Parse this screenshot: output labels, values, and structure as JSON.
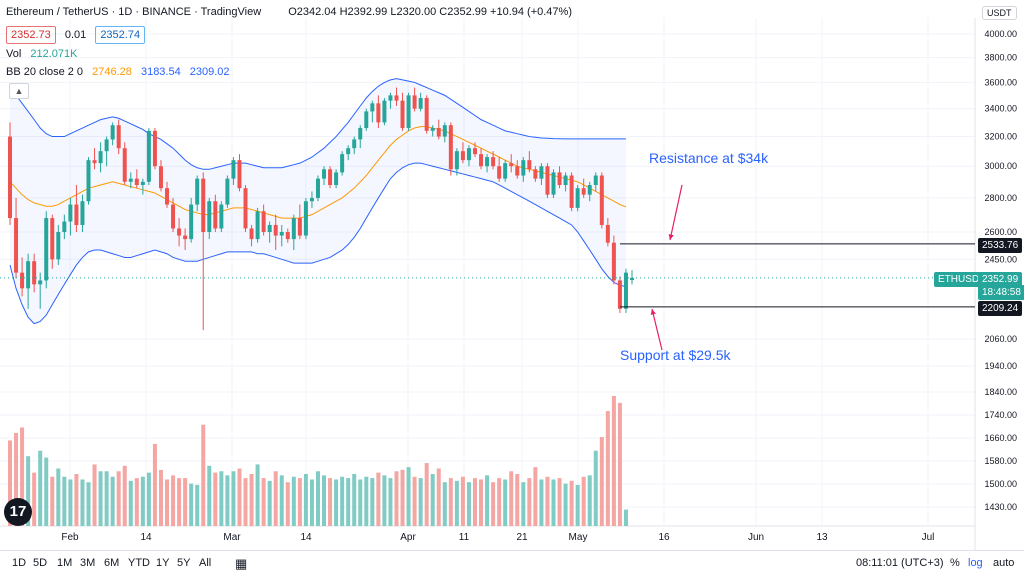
{
  "header": {
    "title": "Ethereum / TetherUS · 1D · BINANCE · TradingView",
    "ohlc": "O2342.04 H2392.99 L2320.00 C2352.99 +10.94 (+0.47%)",
    "bid": "2352.73",
    "spread": "0.01",
    "ask": "2352.74",
    "vol_label": "Vol",
    "vol_value": "212.071K",
    "bb_label": "BB 20 close 2 0",
    "bb_basis": "2746.28",
    "bb_upper": "3183.54",
    "bb_lower": "2309.02",
    "currency": "USDT"
  },
  "timeframes": [
    "1D",
    "5D",
    "1M",
    "3M",
    "6M",
    "YTD",
    "1Y",
    "5Y",
    "All"
  ],
  "bottom_right": {
    "clock": "08:11:01 (UTC+3)",
    "pct": "%",
    "log": "log",
    "auto": "auto"
  },
  "price_tag": {
    "symbol": "ETHUSDT",
    "price": "2352.99",
    "countdown": "18:48:58"
  },
  "levels": {
    "resistance": "2533.76",
    "support": "2209.24"
  },
  "annotations": {
    "resistance": "Resistance at $34k",
    "support": "Support at $29.5k"
  },
  "colors": {
    "up": "#26a69a",
    "down": "#ef5350",
    "band": "#2962ff",
    "basis": "#ff9800",
    "annotation": "#2962ff",
    "arrow": "#e91e63"
  },
  "chart_data": {
    "type": "candlestick",
    "yaxis": {
      "scale": "log",
      "ticks": [
        1430,
        1500,
        1580,
        1660,
        1740,
        1840,
        1940,
        2060,
        2450,
        2600,
        2800,
        3000,
        3200,
        3400,
        3600,
        3800,
        4000
      ]
    },
    "xaxis": {
      "labels": [
        "Feb",
        "14",
        "Mar",
        "14",
        "Apr",
        "11",
        "21",
        "May",
        "16",
        "Jun",
        "13",
        "Jul"
      ]
    },
    "candles": [
      [
        3200,
        3300,
        2640,
        2680
      ],
      [
        2680,
        2800,
        2350,
        2380
      ],
      [
        2380,
        2460,
        2260,
        2300
      ],
      [
        2300,
        2480,
        2200,
        2440
      ],
      [
        2440,
        2480,
        2280,
        2320
      ],
      [
        2320,
        2380,
        2200,
        2340
      ],
      [
        2340,
        2720,
        2300,
        2680
      ],
      [
        2680,
        2700,
        2400,
        2450
      ],
      [
        2450,
        2640,
        2420,
        2600
      ],
      [
        2600,
        2700,
        2560,
        2660
      ],
      [
        2660,
        2800,
        2580,
        2760
      ],
      [
        2760,
        2880,
        2600,
        2640
      ],
      [
        2640,
        2820,
        2600,
        2780
      ],
      [
        2780,
        3060,
        2760,
        3040
      ],
      [
        3040,
        3120,
        2980,
        3020
      ],
      [
        3020,
        3160,
        2960,
        3100
      ],
      [
        3100,
        3200,
        3000,
        3180
      ],
      [
        3180,
        3300,
        3140,
        3280
      ],
      [
        3280,
        3320,
        3080,
        3120
      ],
      [
        3120,
        3160,
        2880,
        2900
      ],
      [
        2900,
        2960,
        2860,
        2920
      ],
      [
        2920,
        2980,
        2860,
        2880
      ],
      [
        2880,
        2920,
        2820,
        2900
      ],
      [
        2900,
        3260,
        2880,
        3240
      ],
      [
        3240,
        3260,
        2980,
        3000
      ],
      [
        3000,
        3040,
        2840,
        2860
      ],
      [
        2860,
        2900,
        2740,
        2760
      ],
      [
        2760,
        2800,
        2600,
        2620
      ],
      [
        2620,
        2680,
        2520,
        2580
      ],
      [
        2580,
        2620,
        2500,
        2560
      ],
      [
        2560,
        2800,
        2540,
        2760
      ],
      [
        2760,
        2940,
        2720,
        2920
      ],
      [
        2920,
        2960,
        2100,
        2600
      ],
      [
        2600,
        2800,
        2560,
        2780
      ],
      [
        2780,
        2820,
        2600,
        2620
      ],
      [
        2620,
        2780,
        2600,
        2760
      ],
      [
        2760,
        2940,
        2740,
        2920
      ],
      [
        2920,
        3060,
        2880,
        3040
      ],
      [
        3040,
        3080,
        2840,
        2860
      ],
      [
        2860,
        2880,
        2600,
        2620
      ],
      [
        2620,
        2640,
        2520,
        2560
      ],
      [
        2560,
        2740,
        2540,
        2720
      ],
      [
        2720,
        2760,
        2580,
        2600
      ],
      [
        2600,
        2660,
        2540,
        2640
      ],
      [
        2640,
        2700,
        2500,
        2580
      ],
      [
        2580,
        2640,
        2520,
        2600
      ],
      [
        2600,
        2620,
        2540,
        2560
      ],
      [
        2560,
        2700,
        2500,
        2680
      ],
      [
        2680,
        2760,
        2560,
        2580
      ],
      [
        2580,
        2800,
        2560,
        2780
      ],
      [
        2780,
        2840,
        2740,
        2800
      ],
      [
        2800,
        2940,
        2780,
        2920
      ],
      [
        2920,
        3000,
        2880,
        2980
      ],
      [
        2980,
        3000,
        2860,
        2880
      ],
      [
        2880,
        2980,
        2860,
        2960
      ],
      [
        2960,
        3100,
        2940,
        3080
      ],
      [
        3080,
        3140,
        3040,
        3120
      ],
      [
        3120,
        3200,
        3080,
        3180
      ],
      [
        3180,
        3280,
        3120,
        3260
      ],
      [
        3260,
        3400,
        3240,
        3380
      ],
      [
        3380,
        3460,
        3300,
        3440
      ],
      [
        3440,
        3500,
        3260,
        3300
      ],
      [
        3300,
        3480,
        3280,
        3460
      ],
      [
        3460,
        3520,
        3400,
        3500
      ],
      [
        3500,
        3560,
        3420,
        3460
      ],
      [
        3460,
        3520,
        3240,
        3260
      ],
      [
        3260,
        3520,
        3240,
        3500
      ],
      [
        3500,
        3560,
        3380,
        3400
      ],
      [
        3400,
        3520,
        3380,
        3480
      ],
      [
        3480,
        3500,
        3220,
        3240
      ],
      [
        3240,
        3280,
        3200,
        3260
      ],
      [
        3260,
        3320,
        3180,
        3200
      ],
      [
        3200,
        3300,
        3160,
        3280
      ],
      [
        3280,
        3300,
        2940,
        2980
      ],
      [
        2980,
        3120,
        2940,
        3100
      ],
      [
        3100,
        3160,
        3020,
        3040
      ],
      [
        3040,
        3140,
        3000,
        3120
      ],
      [
        3120,
        3160,
        3060,
        3080
      ],
      [
        3080,
        3120,
        2980,
        3000
      ],
      [
        3000,
        3080,
        2960,
        3060
      ],
      [
        3060,
        3100,
        2980,
        3000
      ],
      [
        3000,
        3060,
        2900,
        2920
      ],
      [
        2920,
        3040,
        2900,
        3020
      ],
      [
        3020,
        3080,
        2960,
        3000
      ],
      [
        3000,
        3040,
        2920,
        2940
      ],
      [
        2940,
        3060,
        2900,
        3040
      ],
      [
        3040,
        3100,
        2960,
        2980
      ],
      [
        2980,
        3000,
        2900,
        2920
      ],
      [
        2920,
        3020,
        2880,
        3000
      ],
      [
        3000,
        3020,
        2800,
        2820
      ],
      [
        2820,
        2980,
        2800,
        2960
      ],
      [
        2960,
        3000,
        2860,
        2880
      ],
      [
        2880,
        2960,
        2840,
        2940
      ],
      [
        2940,
        2960,
        2720,
        2740
      ],
      [
        2740,
        2880,
        2720,
        2860
      ],
      [
        2860,
        2920,
        2800,
        2820
      ],
      [
        2820,
        2900,
        2780,
        2880
      ],
      [
        2880,
        2960,
        2840,
        2940
      ],
      [
        2940,
        2960,
        2620,
        2640
      ],
      [
        2640,
        2680,
        2520,
        2540
      ],
      [
        2540,
        2580,
        2320,
        2340
      ],
      [
        2340,
        2360,
        2180,
        2200
      ],
      [
        2200,
        2400,
        2180,
        2380
      ],
      [
        2342.04,
        2392.99,
        2320.0,
        2352.99
      ]
    ],
    "volumes": [
      125,
      136,
      144,
      102,
      78,
      110,
      100,
      72,
      84,
      72,
      68,
      76,
      68,
      64,
      90,
      80,
      80,
      72,
      80,
      88,
      66,
      70,
      72,
      78,
      120,
      82,
      68,
      74,
      70,
      70,
      62,
      60,
      148,
      88,
      78,
      80,
      74,
      80,
      84,
      70,
      76,
      90,
      70,
      66,
      80,
      74,
      64,
      72,
      70,
      76,
      68,
      80,
      74,
      70,
      68,
      72,
      70,
      76,
      68,
      72,
      70,
      78,
      74,
      70,
      80,
      82,
      86,
      72,
      70,
      92,
      76,
      84,
      64,
      70,
      66,
      72,
      64,
      70,
      68,
      74,
      64,
      70,
      68,
      80,
      76,
      64,
      70,
      86,
      68,
      72,
      68,
      70,
      62,
      66,
      60,
      72,
      74,
      110,
      130,
      168,
      190,
      180,
      24
    ],
    "bollinger": {
      "basis": [
        2900,
        2860,
        2820,
        2790,
        2770,
        2760,
        2750,
        2750,
        2760,
        2780,
        2800,
        2820,
        2840,
        2860,
        2870,
        2880,
        2890,
        2900,
        2890,
        2880,
        2870,
        2860,
        2850,
        2840,
        2830,
        2810,
        2790,
        2770,
        2750,
        2730,
        2720,
        2710,
        2700,
        2700,
        2710,
        2720,
        2730,
        2740,
        2740,
        2740,
        2730,
        2720,
        2710,
        2700,
        2690,
        2680,
        2680,
        2680,
        2680,
        2690,
        2700,
        2720,
        2740,
        2760,
        2780,
        2800,
        2830,
        2860,
        2900,
        2940,
        2990,
        3040,
        3090,
        3140,
        3180,
        3210,
        3240,
        3260,
        3270,
        3270,
        3260,
        3250,
        3240,
        3220,
        3200,
        3180,
        3160,
        3140,
        3120,
        3100,
        3080,
        3060,
        3040,
        3020,
        3000,
        2990,
        2980,
        2970,
        2960,
        2950,
        2940,
        2930,
        2920,
        2910,
        2900,
        2880,
        2860,
        2840,
        2820,
        2800,
        2780,
        2760,
        2746
      ],
      "upper": [
        3540,
        3500,
        3440,
        3380,
        3320,
        3260,
        3220,
        3200,
        3200,
        3200,
        3220,
        3240,
        3260,
        3280,
        3300,
        3320,
        3330,
        3340,
        3330,
        3310,
        3290,
        3270,
        3250,
        3220,
        3200,
        3180,
        3150,
        3120,
        3080,
        3040,
        3010,
        2990,
        2980,
        2980,
        2990,
        3000,
        3010,
        3020,
        3020,
        3020,
        3010,
        3000,
        2990,
        2990,
        2990,
        2990,
        3000,
        3010,
        3020,
        3040,
        3060,
        3090,
        3120,
        3160,
        3200,
        3250,
        3300,
        3360,
        3420,
        3480,
        3530,
        3570,
        3600,
        3620,
        3630,
        3620,
        3610,
        3600,
        3580,
        3560,
        3540,
        3520,
        3500,
        3470,
        3440,
        3410,
        3380,
        3350,
        3320,
        3300,
        3280,
        3260,
        3240,
        3230,
        3220,
        3210,
        3200,
        3195,
        3190,
        3188,
        3186,
        3185,
        3184,
        3184,
        3184,
        3184,
        3184,
        3184,
        3184,
        3184,
        3184,
        3184,
        3184
      ],
      "lower": [
        2420,
        2300,
        2220,
        2160,
        2130,
        2140,
        2170,
        2220,
        2270,
        2320,
        2370,
        2420,
        2460,
        2490,
        2500,
        2500,
        2490,
        2480,
        2470,
        2460,
        2460,
        2470,
        2480,
        2490,
        2500,
        2490,
        2480,
        2460,
        2450,
        2440,
        2440,
        2440,
        2450,
        2460,
        2470,
        2480,
        2490,
        2490,
        2490,
        2490,
        2490,
        2480,
        2480,
        2470,
        2460,
        2450,
        2440,
        2430,
        2430,
        2430,
        2430,
        2440,
        2450,
        2460,
        2480,
        2500,
        2530,
        2570,
        2620,
        2680,
        2740,
        2800,
        2860,
        2920,
        2960,
        2990,
        3010,
        3020,
        3020,
        3010,
        3000,
        2990,
        2980,
        2970,
        2960,
        2950,
        2940,
        2930,
        2920,
        2910,
        2900,
        2880,
        2860,
        2840,
        2820,
        2800,
        2780,
        2760,
        2740,
        2720,
        2700,
        2680,
        2660,
        2640,
        2600,
        2550,
        2500,
        2450,
        2400,
        2360,
        2330,
        2315,
        2309
      ]
    }
  }
}
